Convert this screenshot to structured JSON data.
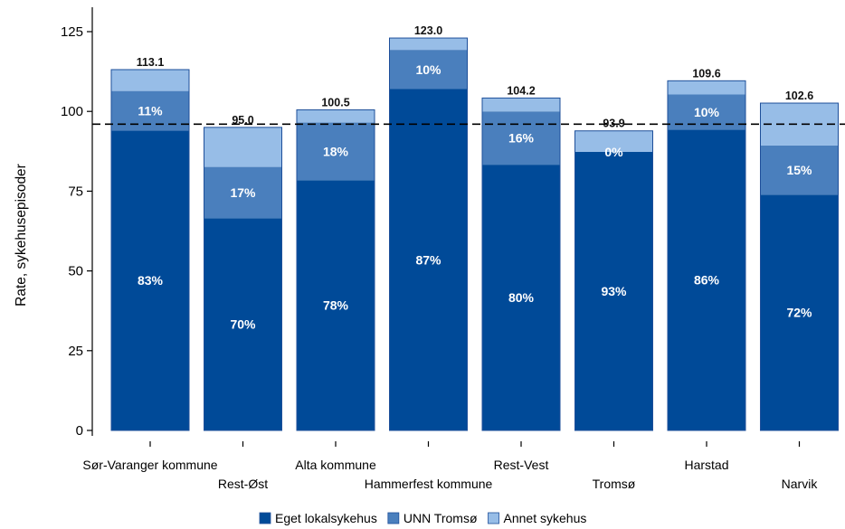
{
  "chart_data": {
    "type": "bar",
    "stacked": true,
    "ylabel": "Rate, sykehusepisoder",
    "xlabel": "",
    "ylim": [
      0,
      130
    ],
    "yticks": [
      0,
      25,
      50,
      75,
      100,
      125
    ],
    "reference_line": 96,
    "categories": [
      "Sør-Varanger kommune",
      "Rest-Øst",
      "Alta kommune",
      "Hammerfest kommune",
      "Rest-Vest",
      "Tromsø",
      "Harstad",
      "Narvik"
    ],
    "totals": [
      113.1,
      95.0,
      100.5,
      123.0,
      104.2,
      93.9,
      109.6,
      102.6
    ],
    "total_labels": [
      "113.1",
      "95.0",
      "100.5",
      "123.0",
      "104.2",
      "93.9",
      "109.6",
      "102.6"
    ],
    "series": [
      {
        "name": "Eget lokalsykehus",
        "color": "#004a98",
        "values": [
          94,
          66.5,
          78.4,
          107,
          83.3,
          87.3,
          94.3,
          73.9
        ],
        "labels": [
          "83%",
          "70%",
          "78%",
          "87%",
          "80%",
          "93%",
          "86%",
          "72%"
        ]
      },
      {
        "name": "UNN Tromsø",
        "color": "#4a7fbd",
        "values": [
          12.4,
          16.1,
          18.1,
          12.3,
          16.7,
          0,
          11,
          15.4
        ],
        "labels": [
          "11%",
          "17%",
          "18%",
          "10%",
          "16%",
          "0%",
          "10%",
          "15%"
        ]
      },
      {
        "name": "Annet sykehus",
        "color": "#97bde7",
        "values": [
          6.7,
          12.4,
          4,
          3.7,
          4.2,
          6.6,
          4.3,
          13.3
        ],
        "labels": [
          "",
          "",
          "",
          "",
          "",
          "",
          "",
          ""
        ]
      }
    ],
    "legend_position": "bottom"
  }
}
